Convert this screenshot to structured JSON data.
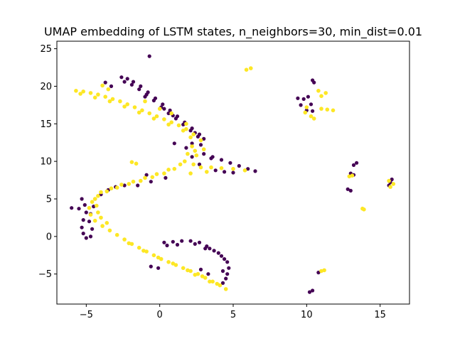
{
  "chart_data": {
    "type": "scatter",
    "title": "UMAP embedding of LSTM states, n_neighbors=30, min_dist=0.01",
    "xlabel": "",
    "ylabel": "",
    "xlim": [
      -7,
      17
    ],
    "ylim": [
      -9,
      26
    ],
    "xticks": [
      -5,
      0,
      5,
      10,
      15
    ],
    "xtick_labels": [
      "−5",
      "0",
      "5",
      "10",
      "15"
    ],
    "yticks": [
      -5,
      0,
      5,
      10,
      15,
      20,
      25
    ],
    "ytick_labels": [
      "−5",
      "0",
      "5",
      "10",
      "15",
      "20",
      "25"
    ],
    "grid": false,
    "legend": "none",
    "colors": {
      "class0": "#440154",
      "class1": "#fde725"
    },
    "series": [
      {
        "color": "#440154",
        "points": [
          [
            -2.6,
            21.2
          ],
          [
            -2.2,
            21.0
          ],
          [
            -1.8,
            20.6
          ],
          [
            -1.3,
            20.0
          ],
          [
            -0.8,
            19.2
          ],
          [
            -0.3,
            18.4
          ],
          [
            0.2,
            17.6
          ],
          [
            0.7,
            16.8
          ],
          [
            1.2,
            16.0
          ],
          [
            1.7,
            15.2
          ],
          [
            2.2,
            14.4
          ],
          [
            2.7,
            13.6
          ],
          [
            3.0,
            13.0
          ],
          [
            -2.4,
            20.6
          ],
          [
            -1.9,
            20.2
          ],
          [
            -1.4,
            19.6
          ],
          [
            -0.9,
            18.9
          ],
          [
            -0.4,
            18.1
          ],
          [
            0.1,
            17.2
          ],
          [
            0.6,
            16.4
          ],
          [
            1.1,
            15.7
          ],
          [
            1.6,
            14.9
          ],
          [
            2.1,
            14.1
          ],
          [
            2.6,
            13.3
          ],
          [
            -3.7,
            20.5
          ],
          [
            -3.3,
            20.0
          ],
          [
            -1.0,
            18.6
          ],
          [
            0.3,
            17.0
          ],
          [
            0.9,
            16.1
          ],
          [
            2.4,
            13.8
          ],
          [
            -5.3,
            5.0
          ],
          [
            -5.1,
            4.2
          ],
          [
            -5.0,
            3.2
          ],
          [
            -5.2,
            2.2
          ],
          [
            -5.3,
            1.2
          ],
          [
            -5.2,
            0.4
          ],
          [
            -5.0,
            -0.2
          ],
          [
            -4.7,
            0.0
          ],
          [
            -4.6,
            1.0
          ],
          [
            -4.8,
            2.0
          ],
          [
            -4.7,
            3.0
          ],
          [
            -4.5,
            4.0
          ],
          [
            -4.4,
            5.0
          ],
          [
            -4.0,
            5.6
          ],
          [
            -3.5,
            6.2
          ],
          [
            -3.0,
            6.6
          ],
          [
            -2.4,
            6.8
          ],
          [
            -5.5,
            3.7
          ],
          [
            -6.0,
            3.8
          ],
          [
            0.3,
            -0.8
          ],
          [
            0.9,
            -0.7
          ],
          [
            1.5,
            -0.6
          ],
          [
            2.1,
            -0.6
          ],
          [
            2.7,
            -0.8
          ],
          [
            3.2,
            -1.3
          ],
          [
            3.7,
            -1.9
          ],
          [
            4.2,
            -2.6
          ],
          [
            4.6,
            -3.4
          ],
          [
            4.7,
            -4.2
          ],
          [
            4.6,
            -5.0
          ],
          [
            4.5,
            -5.6
          ],
          [
            4.3,
            -6.2
          ],
          [
            0.5,
            -1.2
          ],
          [
            1.2,
            -1.1
          ],
          [
            2.4,
            -1.0
          ],
          [
            3.4,
            -1.6
          ],
          [
            4.0,
            -2.2
          ],
          [
            4.4,
            -3.0
          ],
          [
            4.3,
            -4.6
          ],
          [
            2.8,
            -4.4
          ],
          [
            3.3,
            -5.0
          ],
          [
            3.1,
            -1.6
          ],
          [
            -0.1,
            -4.2
          ],
          [
            -0.6,
            -4.0
          ],
          [
            3.0,
            11.0
          ],
          [
            3.6,
            10.6
          ],
          [
            4.2,
            10.2
          ],
          [
            4.8,
            9.8
          ],
          [
            5.4,
            9.4
          ],
          [
            6.0,
            9.0
          ],
          [
            6.5,
            8.7
          ],
          [
            5.0,
            8.5
          ],
          [
            4.4,
            8.6
          ],
          [
            3.8,
            8.8
          ],
          [
            3.5,
            10.4
          ],
          [
            2.2,
            10.6
          ],
          [
            2.7,
            9.6
          ],
          [
            1.8,
            11.8
          ],
          [
            2.8,
            12.2
          ],
          [
            1.0,
            12.4
          ],
          [
            2.2,
            12.4
          ],
          [
            -1.5,
            6.8
          ],
          [
            -0.6,
            7.3
          ],
          [
            0.4,
            7.8
          ],
          [
            -0.9,
            8.2
          ],
          [
            -0.7,
            24.0
          ],
          [
            10.4,
            20.8
          ],
          [
            10.5,
            20.5
          ],
          [
            9.4,
            18.4
          ],
          [
            9.8,
            18.3
          ],
          [
            10.1,
            18.6
          ],
          [
            9.6,
            17.5
          ],
          [
            10.3,
            17.6
          ],
          [
            10.0,
            16.8
          ],
          [
            10.4,
            16.7
          ],
          [
            13.4,
            9.8
          ],
          [
            13.2,
            9.5
          ],
          [
            13.0,
            8.4
          ],
          [
            13.2,
            8.2
          ],
          [
            12.8,
            6.3
          ],
          [
            13.0,
            6.1
          ],
          [
            15.8,
            7.6
          ],
          [
            15.7,
            7.2
          ],
          [
            15.6,
            6.8
          ],
          [
            10.8,
            -4.8
          ],
          [
            10.4,
            -7.2
          ],
          [
            10.2,
            -7.4
          ]
        ]
      },
      {
        "color": "#fde725",
        "points": [
          [
            -5.7,
            19.4
          ],
          [
            -5.2,
            19.3
          ],
          [
            -4.7,
            19.1
          ],
          [
            -4.2,
            18.9
          ],
          [
            -3.7,
            18.6
          ],
          [
            -3.2,
            18.3
          ],
          [
            -2.7,
            18.0
          ],
          [
            -2.2,
            17.6
          ],
          [
            -1.7,
            17.2
          ],
          [
            -1.2,
            16.8
          ],
          [
            -0.7,
            16.4
          ],
          [
            -0.2,
            16.0
          ],
          [
            0.3,
            15.6
          ],
          [
            0.8,
            15.2
          ],
          [
            1.3,
            14.8
          ],
          [
            1.8,
            14.3
          ],
          [
            2.3,
            13.6
          ],
          [
            -5.4,
            19.0
          ],
          [
            -4.4,
            18.5
          ],
          [
            -3.4,
            18.0
          ],
          [
            -2.4,
            17.3
          ],
          [
            -1.4,
            16.5
          ],
          [
            -0.4,
            15.7
          ],
          [
            0.6,
            14.9
          ],
          [
            1.6,
            14.1
          ],
          [
            2.1,
            13.2
          ],
          [
            -3.9,
            20.1
          ],
          [
            -3.5,
            19.6
          ],
          [
            -1.0,
            18.0
          ],
          [
            0.0,
            17.0
          ],
          [
            0.8,
            16.4
          ],
          [
            1.8,
            15.0
          ],
          [
            2.8,
            12.8
          ],
          [
            2.2,
            12.0
          ],
          [
            1.9,
            11.0
          ],
          [
            1.7,
            10.0
          ],
          [
            2.3,
            9.6
          ],
          [
            2.8,
            9.2
          ],
          [
            3.5,
            9.2
          ],
          [
            4.2,
            9.1
          ],
          [
            5.0,
            9.0
          ],
          [
            5.8,
            8.8
          ],
          [
            2.5,
            10.8
          ],
          [
            1.4,
            9.6
          ],
          [
            3.2,
            8.6
          ],
          [
            2.1,
            8.4
          ],
          [
            3.0,
            11.6
          ],
          [
            2.4,
            11.4
          ],
          [
            1.0,
            9.0
          ],
          [
            0.3,
            8.4
          ],
          [
            -0.5,
            7.9
          ],
          [
            -1.3,
            7.4
          ],
          [
            -2.1,
            7.0
          ],
          [
            -2.9,
            6.5
          ],
          [
            -3.6,
            6.0
          ],
          [
            -4.2,
            5.4
          ],
          [
            -4.6,
            4.6
          ],
          [
            -4.8,
            3.8
          ],
          [
            -4.7,
            2.9
          ],
          [
            -4.4,
            2.1
          ],
          [
            -3.9,
            1.4
          ],
          [
            -3.4,
            0.8
          ],
          [
            -2.9,
            0.2
          ],
          [
            0.6,
            8.9
          ],
          [
            -0.2,
            8.3
          ],
          [
            -1.0,
            7.8
          ],
          [
            -1.8,
            7.3
          ],
          [
            -2.6,
            6.9
          ],
          [
            -3.3,
            6.4
          ],
          [
            -4.0,
            5.9
          ],
          [
            -4.4,
            5.0
          ],
          [
            -4.3,
            4.1
          ],
          [
            -4.2,
            3.2
          ],
          [
            -4.0,
            2.5
          ],
          [
            -3.6,
            1.8
          ],
          [
            -2.4,
            -0.4
          ],
          [
            -1.9,
            -1.0
          ],
          [
            -1.4,
            -1.5
          ],
          [
            -0.9,
            -2.0
          ],
          [
            -0.4,
            -2.5
          ],
          [
            0.1,
            -3.0
          ],
          [
            0.6,
            -3.4
          ],
          [
            1.1,
            -3.8
          ],
          [
            1.6,
            -4.2
          ],
          [
            2.1,
            -4.6
          ],
          [
            2.6,
            -5.0
          ],
          [
            3.1,
            -5.5
          ],
          [
            3.6,
            -6.0
          ],
          [
            4.1,
            -6.5
          ],
          [
            4.5,
            -7.0
          ],
          [
            -2.1,
            -0.9
          ],
          [
            -1.1,
            -1.9
          ],
          [
            -0.1,
            -2.8
          ],
          [
            0.9,
            -3.6
          ],
          [
            1.9,
            -4.5
          ],
          [
            2.9,
            -5.3
          ],
          [
            3.9,
            -6.3
          ],
          [
            3.4,
            -6.0
          ],
          [
            2.4,
            -5.1
          ],
          [
            -1.9,
            9.9
          ],
          [
            -1.6,
            9.7
          ],
          [
            5.9,
            22.2
          ],
          [
            6.2,
            22.4
          ],
          [
            10.0,
            17.2
          ],
          [
            10.3,
            16.0
          ],
          [
            10.5,
            15.7
          ],
          [
            9.9,
            16.5
          ],
          [
            11.0,
            17.0
          ],
          [
            11.4,
            16.9
          ],
          [
            11.8,
            16.8
          ],
          [
            11.0,
            18.7
          ],
          [
            11.3,
            19.1
          ],
          [
            10.8,
            19.4
          ],
          [
            12.9,
            8.0
          ],
          [
            13.1,
            8.1
          ],
          [
            15.6,
            7.4
          ],
          [
            15.9,
            7.0
          ],
          [
            15.7,
            6.6
          ],
          [
            13.8,
            3.7
          ],
          [
            13.9,
            3.6
          ],
          [
            11.0,
            -4.6
          ],
          [
            11.2,
            -4.5
          ]
        ]
      }
    ]
  }
}
